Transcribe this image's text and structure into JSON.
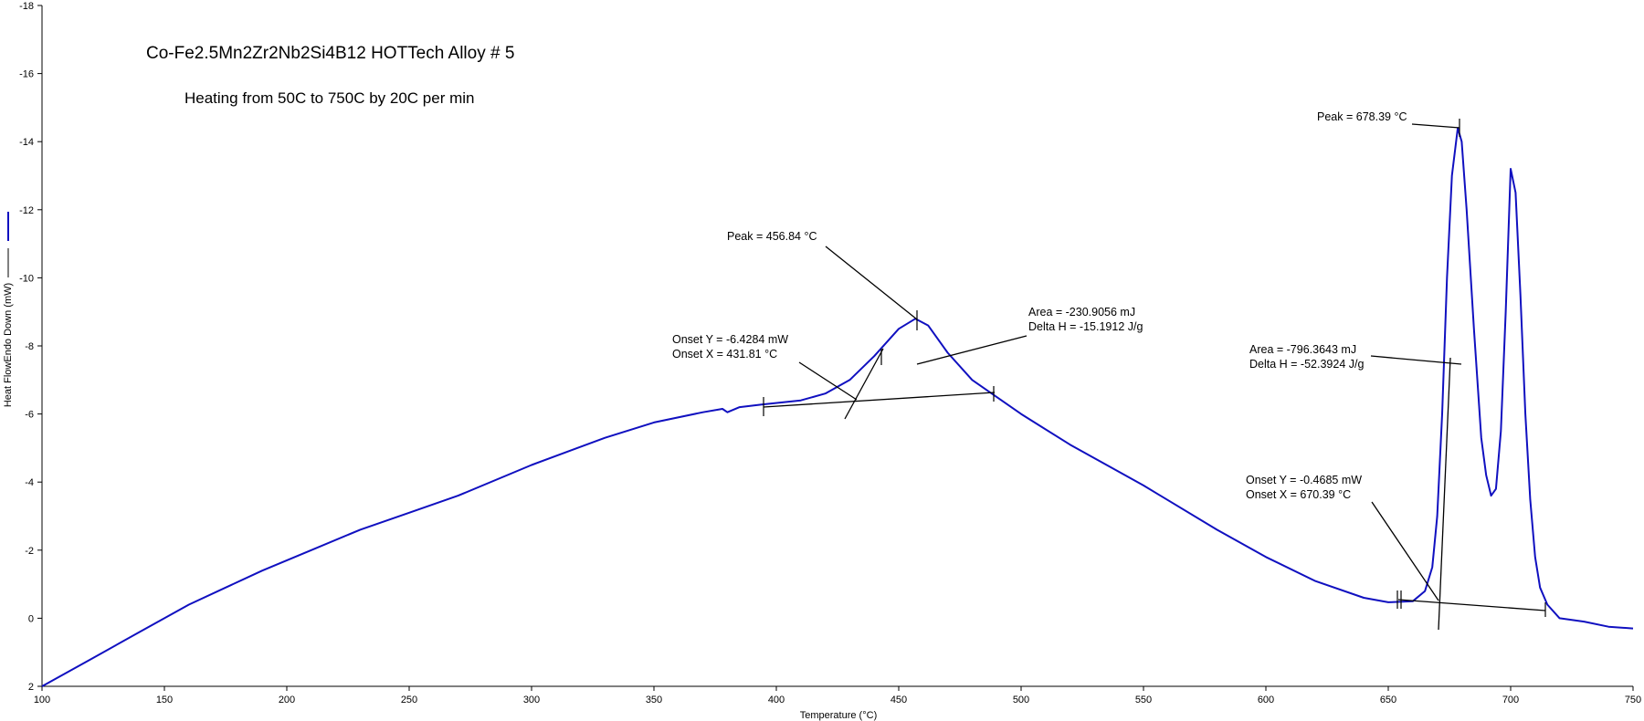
{
  "chart_data": {
    "type": "line",
    "title": "Co-Fe2.5Mn2Zr2Nb2Si4B12 HOTTech Alloy # 5",
    "subtitle": "Heating from 50C to 750C by 20C per min",
    "xlabel": "Temperature (°C)",
    "ylabel": "Heat FlowEndo Down (mW)",
    "xlim": [
      100,
      750
    ],
    "ylim": [
      2,
      -18
    ],
    "y_inverted": true,
    "grid": false,
    "x_ticks": [
      100,
      150,
      200,
      250,
      300,
      350,
      400,
      450,
      500,
      550,
      600,
      650,
      700,
      750
    ],
    "y_ticks": [
      2,
      0,
      -2,
      -4,
      -6,
      -8,
      -10,
      -12,
      -14,
      -16,
      -18
    ],
    "series": [
      {
        "color": "#1010c0",
        "x": [
          100,
          120,
          140,
          150,
          160,
          175,
          190,
          210,
          230,
          250,
          270,
          300,
          330,
          350,
          370,
          378,
          380,
          385,
          394,
          410,
          420,
          430,
          440,
          450,
          456.84,
          462,
          470,
          480,
          490,
          500,
          520,
          550,
          580,
          600,
          620,
          640,
          650,
          660,
          665,
          668,
          670,
          672,
          674,
          676,
          678.39,
          680,
          682,
          685,
          688,
          690,
          692,
          694,
          696,
          698,
          700,
          702,
          704,
          706,
          708,
          710,
          712,
          715,
          720,
          730,
          740,
          750
        ],
        "values": [
          2.0,
          1.2,
          0.4,
          0.0,
          -0.4,
          -0.9,
          -1.4,
          -2.0,
          -2.6,
          -3.1,
          -3.6,
          -4.5,
          -5.3,
          -5.75,
          -6.05,
          -6.15,
          -6.05,
          -6.2,
          -6.28,
          -6.4,
          -6.6,
          -7.0,
          -7.7,
          -8.5,
          -8.8,
          -8.6,
          -7.8,
          -7.0,
          -6.5,
          -6.0,
          -5.1,
          -3.9,
          -2.6,
          -1.8,
          -1.1,
          -0.6,
          -0.47,
          -0.5,
          -0.8,
          -1.5,
          -3.0,
          -6.0,
          -10.0,
          -13.0,
          -14.4,
          -14.0,
          -12.0,
          -8.5,
          -5.3,
          -4.2,
          -3.6,
          -3.8,
          -5.5,
          -9.0,
          -13.2,
          -12.5,
          -9.5,
          -6.0,
          -3.5,
          -1.8,
          -0.9,
          -0.4,
          0.0,
          0.1,
          0.25,
          0.3
        ]
      }
    ],
    "annotations": [
      {
        "lines": [
          "Peak = 456.84 °C"
        ]
      },
      {
        "lines": [
          "Onset Y = -6.4284 mW",
          "Onset X = 431.81 °C"
        ]
      },
      {
        "lines": [
          "Area = -230.9056 mJ",
          "Delta H = -15.1912 J/g"
        ]
      },
      {
        "lines": [
          "Peak = 678.39 °C"
        ]
      },
      {
        "lines": [
          "Area = -796.3643 mJ",
          "Delta H = -52.3924 J/g"
        ]
      },
      {
        "lines": [
          "Onset Y = -0.4685 mW",
          "Onset X = 670.39 °C"
        ]
      }
    ],
    "legend": [
      "blue-series-marker",
      "black-series-marker"
    ]
  }
}
